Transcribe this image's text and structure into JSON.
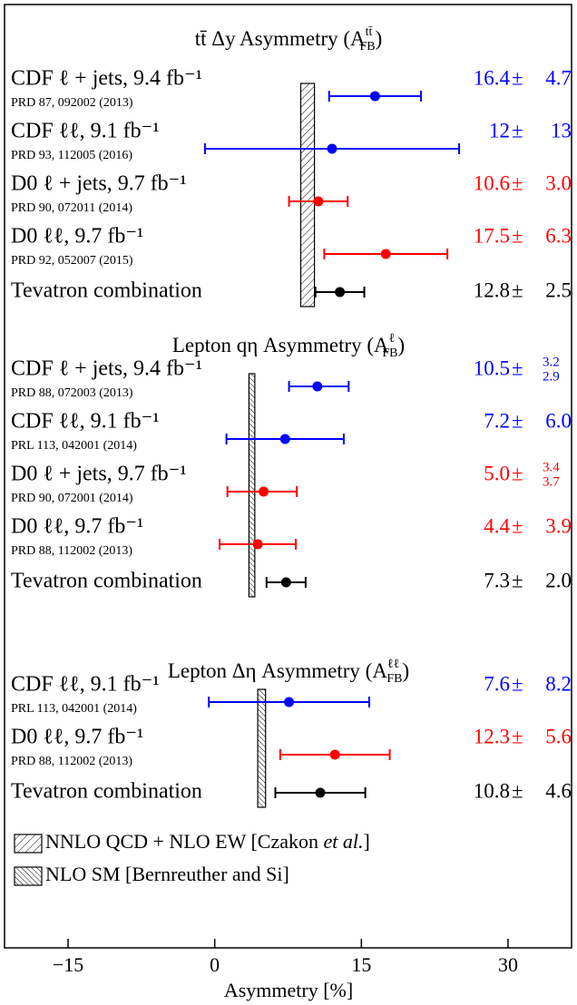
{
  "chart_data": {
    "type": "forest",
    "xlabel": "Asymmetry [%]",
    "xlim": [
      -21.5,
      36.5
    ],
    "xticks": [
      {
        "value": -15,
        "label": "−15"
      },
      0,
      15,
      30
    ],
    "pm": "±",
    "models": [
      {
        "name": "NNLO QCD + NLO EW [Czakon ",
        "name_italic": "et al.",
        "name_end": "]",
        "hatch": "forward"
      },
      {
        "name": "NLO SM [Bernreuther and Si]",
        "hatch": "back"
      }
    ],
    "panels": [
      {
        "text": "tt̄ Δy Asymmetry (A",
        "sup": "tt̄",
        "sub": "FB",
        "end": ")",
        "prediction": 9.5,
        "prediction_error": 0.7,
        "model": 0,
        "entries": [
          {
            "label": "CDF ℓ + jets, 9.4 fb⁻¹",
            "ref": "PRD 87, 092002 (2013)",
            "value": 16.4,
            "error": 4.7,
            "value_label": "16.4",
            "error_label": "4.7",
            "color": "#0000ff"
          },
          {
            "label": "CDF ℓℓ, 9.1 fb⁻¹",
            "ref": "PRD 93, 112005 (2016)",
            "value": 12,
            "error": 13,
            "value_label": "12",
            "error_label": "13",
            "color": "#0000ff"
          },
          {
            "label": "D0 ℓ + jets, 9.7 fb⁻¹",
            "ref": "PRD 90, 072011 (2014)",
            "value": 10.6,
            "error": 3.0,
            "value_label": "10.6",
            "error_label": "3.0",
            "color": "#ff0000"
          },
          {
            "label": "D0 ℓℓ, 9.7 fb⁻¹",
            "ref": "PRD 92, 052007 (2015)",
            "value": 17.5,
            "error": 6.3,
            "value_label": "17.5",
            "error_label": "6.3",
            "color": "#ff0000"
          },
          {
            "label": "Tevatron combination",
            "value": 12.8,
            "error": 2.5,
            "value_label": "12.8",
            "error_label": "2.5",
            "color": "#000000"
          }
        ]
      },
      {
        "text": "Lepton qη Asymmetry (A",
        "sup": "ℓ",
        "sub": "FB",
        "end": ")",
        "prediction": 3.8,
        "prediction_error": 0.3,
        "model": 1,
        "entries": [
          {
            "label": "CDF ℓ + jets, 9.4 fb⁻¹",
            "ref": "PRD 88, 072003 (2013)",
            "value": 10.5,
            "error_plus": 3.2,
            "error_minus": 2.9,
            "value_label": "10.5",
            "error_plus_label": "3.2",
            "error_minus_label": "2.9",
            "color": "#0000ff"
          },
          {
            "label": "CDF ℓℓ, 9.1 fb⁻¹",
            "ref": "PRL 113, 042001 (2014)",
            "value": 7.2,
            "error": 6.0,
            "value_label": "7.2",
            "error_label": "6.0",
            "color": "#0000ff"
          },
          {
            "label": "D0 ℓ + jets, 9.7 fb⁻¹",
            "ref": "PRD 90, 072001 (2014)",
            "value": 5.0,
            "error_plus": 3.4,
            "error_minus": 3.7,
            "value_label": "5.0",
            "error_plus_label": "3.4",
            "error_minus_label": "3.7",
            "color": "#ff0000"
          },
          {
            "label": "D0 ℓℓ, 9.7 fb⁻¹",
            "ref": "PRD 88, 112002 (2013)",
            "value": 4.4,
            "error": 3.9,
            "value_label": "4.4",
            "error_label": "3.9",
            "color": "#ff0000"
          },
          {
            "label": "Tevatron combination",
            "value": 7.3,
            "error": 2.0,
            "value_label": "7.3",
            "error_label": "2.0",
            "color": "#000000"
          }
        ]
      },
      {
        "text": "Lepton Δη Asymmetry (A",
        "sup": "ℓℓ",
        "sub": "FB",
        "end": ")",
        "prediction": 4.8,
        "prediction_error": 0.4,
        "model": 1,
        "entries": [
          {
            "label": "CDF ℓℓ, 9.1 fb⁻¹",
            "ref": "PRL 113, 042001 (2014)",
            "value": 7.6,
            "error": 8.2,
            "value_label": "7.6",
            "error_label": "8.2",
            "color": "#0000ff"
          },
          {
            "label": "D0 ℓℓ, 9.7 fb⁻¹",
            "ref": "PRD 88, 112002 (2013)",
            "value": 12.3,
            "error": 5.6,
            "value_label": "12.3",
            "error_label": "5.6",
            "color": "#ff0000"
          },
          {
            "label": "Tevatron combination",
            "value": 10.8,
            "error": 4.6,
            "value_label": "10.8",
            "error_label": "4.6",
            "color": "#000000"
          }
        ]
      }
    ]
  }
}
